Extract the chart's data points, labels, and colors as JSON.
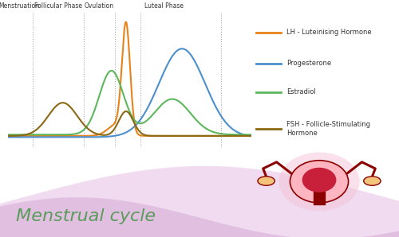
{
  "title": "Menstrual cycle",
  "phases": [
    [
      "Menstruation",
      0.045
    ],
    [
      "Follicular Phase",
      0.205
    ],
    [
      "Ovulation",
      0.375
    ],
    [
      "Luteal Phase",
      0.64
    ]
  ],
  "vlines": [
    0.1,
    0.31,
    0.44,
    0.545,
    0.875
  ],
  "lh_color": "#E8821A",
  "prog_color": "#4C8FCC",
  "estradiol_color": "#5CB85C",
  "fsh_color": "#8B6914",
  "legend_labels": [
    "LH - Luteinising Hormone",
    "Progesterone",
    "Estradiol",
    "FSH - Follicle-Stimulating\nHormone"
  ],
  "bg_color": "#FFFFFF",
  "wave_color1": "#E8C8E8",
  "wave_color2": "#D4A8D4",
  "title_color": "#5B9B5B",
  "title_fontsize": 16,
  "uterus_body_color": "#FFB6C1",
  "uterus_inner_color": "#C8203A",
  "uterus_dark_color": "#8B0000",
  "ovary_color": "#F4C47A"
}
